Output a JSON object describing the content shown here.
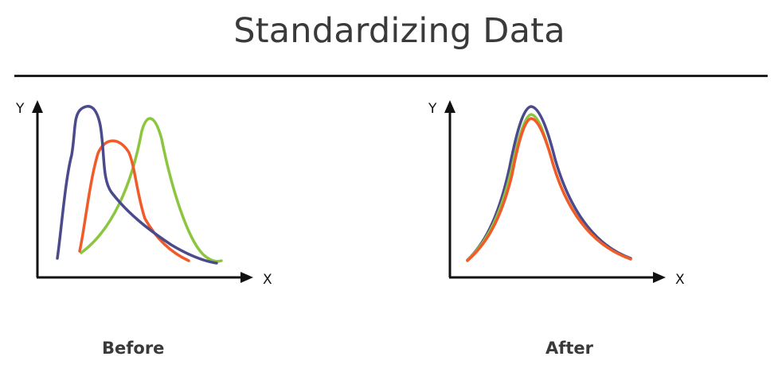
{
  "title": "Standardizing Data",
  "panels": [
    {
      "caption": "Before",
      "x_axis_label": "X",
      "y_axis_label": "Y"
    },
    {
      "caption": "After",
      "x_axis_label": "X",
      "y_axis_label": "Y"
    }
  ],
  "curve_colors": {
    "purple": "#4b4a8c",
    "orange": "#f15a29",
    "green": "#8cc63f"
  },
  "axis_color": "#111111",
  "text_color": "#3a3a3a"
}
